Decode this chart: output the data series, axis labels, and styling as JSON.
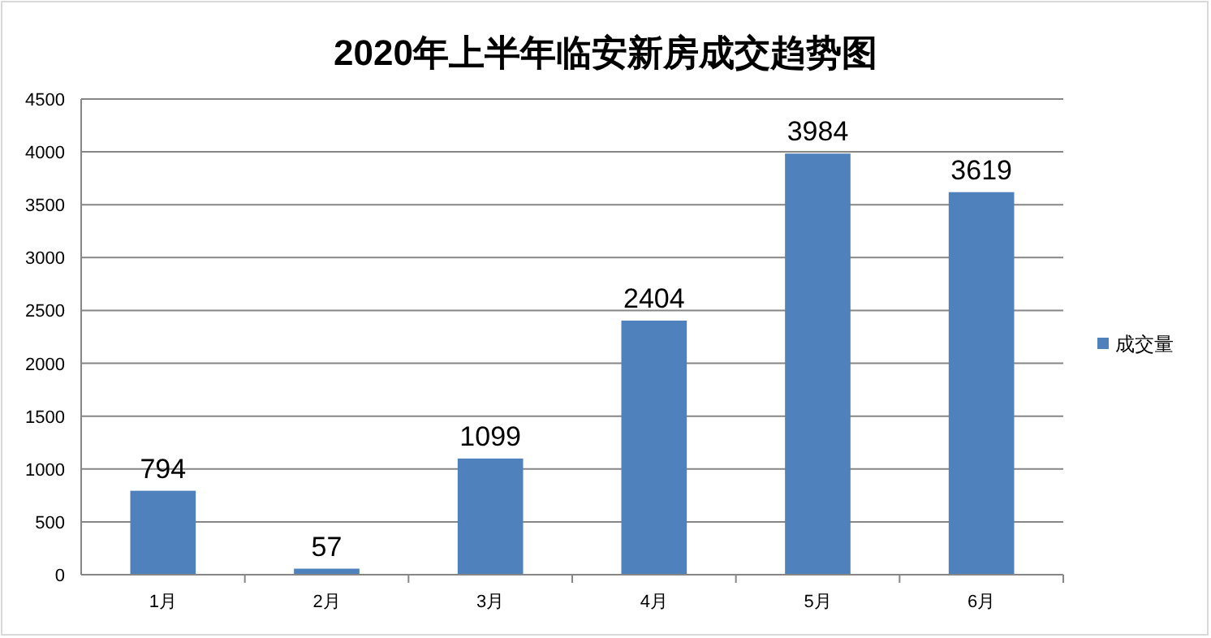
{
  "chart_data": {
    "type": "bar",
    "title": "2020年上半年临安新房成交趋势图",
    "categories": [
      "1月",
      "2月",
      "3月",
      "4月",
      "5月",
      "6月"
    ],
    "series": [
      {
        "name": "成交量",
        "color": "#4f81bd",
        "values": [
          794,
          57,
          1099,
          2404,
          3984,
          3619
        ]
      }
    ],
    "ylim": [
      0,
      4500
    ],
    "yticks": [
      0,
      500,
      1000,
      1500,
      2000,
      2500,
      3000,
      3500,
      4000,
      4500
    ],
    "grid": "y",
    "legend": "right",
    "data_labels": true
  }
}
